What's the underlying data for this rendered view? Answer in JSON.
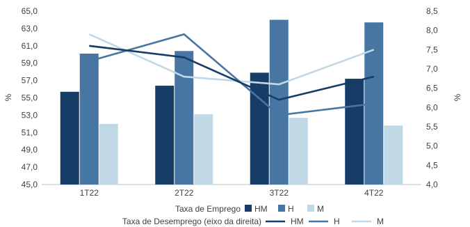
{
  "chart_data": {
    "type": "bar+line",
    "categories": [
      "1T22",
      "2T22",
      "3T22",
      "4T22"
    ],
    "bar_group": {
      "label": "Taxa de Emprego",
      "axis": "left",
      "series": [
        {
          "name": "HM",
          "color": "#173c66",
          "values": [
            55.7,
            56.4,
            57.9,
            57.2
          ]
        },
        {
          "name": "H",
          "color": "#4876a3",
          "values": [
            60.1,
            60.4,
            64.0,
            63.7
          ]
        },
        {
          "name": "M",
          "color": "#c1d9e6",
          "values": [
            52.0,
            53.1,
            52.7,
            51.8
          ]
        }
      ]
    },
    "line_group": {
      "label": "Taxa de Desemprego (eixo da direita)",
      "axis": "right",
      "series": [
        {
          "name": "HM",
          "color": "#173c66",
          "values": [
            7.6,
            7.3,
            6.2,
            6.8
          ]
        },
        {
          "name": "H",
          "color": "#4876a3",
          "values": [
            7.2,
            7.9,
            5.8,
            6.1
          ]
        },
        {
          "name": "M",
          "color": "#c1d9e6",
          "values": [
            7.9,
            6.8,
            6.6,
            7.5
          ]
        }
      ]
    },
    "y_left": {
      "label": "%",
      "min": 45.0,
      "max": 65.0,
      "ticks": [
        "45,0",
        "47,0",
        "49,0",
        "51,0",
        "53,0",
        "55,0",
        "57,0",
        "59,0",
        "61,0",
        "63,0",
        "65,0"
      ]
    },
    "y_right": {
      "label": "%",
      "min": 4.0,
      "max": 8.5,
      "ticks": [
        "4,0",
        "4,5",
        "5,0",
        "5,5",
        "6,0",
        "6,5",
        "7,0",
        "7,5",
        "8,0",
        "8,5"
      ]
    },
    "grid": false,
    "legend_position": "bottom"
  }
}
